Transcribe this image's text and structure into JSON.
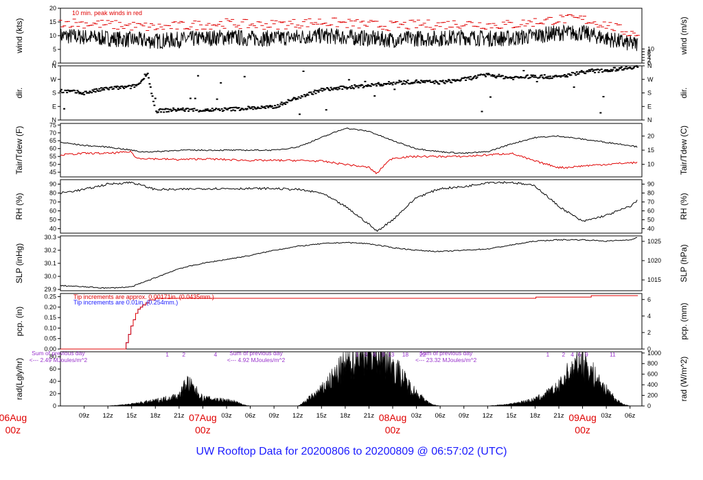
{
  "footer": {
    "title": "UW Rooftop Data for 20200806  to  20200809 @ 06:57:02  (UTC)"
  },
  "colors": {
    "black": "#000000",
    "red": "#e00000",
    "blue": "#1a1aff",
    "purple": "#9933cc",
    "date_red": "#e00000",
    "series_blue": "#2222cc"
  },
  "chart_data": {
    "type": "line",
    "time_axis": {
      "start": "2020-08-06 06:00Z",
      "end": "2020-08-09 07:00Z",
      "ticks_hours": [
        3,
        6,
        9,
        12,
        15,
        18,
        21,
        24,
        27,
        30,
        33,
        36,
        39,
        42,
        45,
        48,
        51,
        54,
        57,
        60,
        63,
        66,
        69,
        72
      ],
      "tick_labels": [
        "09z",
        "12z",
        "15z",
        "18z",
        "21z",
        "00z",
        "03z",
        "06z",
        "09z",
        "12z",
        "15z",
        "18z",
        "21z",
        "00z",
        "03z",
        "06z",
        "09z",
        "12z",
        "15z",
        "18z",
        "21z",
        "00z",
        "03z",
        "06z"
      ],
      "hide_tick_label_hours": [
        18,
        42,
        66
      ],
      "date_labels": [
        {
          "hour": -6,
          "date": "06Aug",
          "zz": "00z"
        },
        {
          "hour": 18,
          "date": "07Aug",
          "zz": "00z"
        },
        {
          "hour": 42,
          "date": "08Aug",
          "zz": "00z"
        },
        {
          "hour": 66,
          "date": "09Aug",
          "zz": "00z"
        }
      ]
    },
    "panels": [
      {
        "key": "wind",
        "ylabel": "wind (kts)",
        "ylabel_right": "wind (m/s)",
        "ylim": [
          0,
          20
        ],
        "yticks": [
          0,
          5,
          10,
          15,
          20
        ],
        "right_ticks": [
          0,
          2,
          4,
          6,
          8,
          10
        ],
        "right_factor": 1.944,
        "annotation": "10 min. peak winds in red",
        "series": [
          {
            "color": "#000000",
            "style": "line",
            "x": [
              0,
              3,
              6,
              9,
              12,
              15,
              18,
              21,
              24,
              27,
              30,
              33,
              36,
              39,
              42,
              45,
              48,
              51,
              54,
              57,
              60,
              63,
              66,
              69,
              72,
              73
            ],
            "y": [
              10,
              9.5,
              9,
              8.5,
              8,
              8.5,
              9,
              9.5,
              9,
              9,
              9.5,
              10,
              9.5,
              9,
              8.5,
              9,
              9,
              9.5,
              9,
              9,
              10,
              11,
              11,
              9,
              7,
              7
            ],
            "noise": 3,
            "step": 0.06
          },
          {
            "color": "#e00000",
            "style": "dash",
            "x": [
              0,
              3,
              6,
              9,
              12,
              15,
              18,
              21,
              24,
              27,
              30,
              33,
              36,
              39,
              42,
              45,
              48,
              51,
              54,
              57,
              60,
              63,
              66,
              69,
              72,
              73
            ],
            "y": [
              15,
              14.5,
              14,
              13.5,
              13,
              13.5,
              14,
              14.5,
              14,
              14,
              14.5,
              15,
              14.5,
              14,
              13.5,
              14,
              14,
              14.5,
              14,
              14,
              15,
              16,
              16,
              14,
              11,
              11
            ],
            "noise": 1.8,
            "step": 0.25
          }
        ]
      },
      {
        "key": "dir",
        "ylabel": "dir.",
        "ylabel_right": "dir.",
        "ylim": [
          0,
          360
        ],
        "ytick_values": [
          0,
          90,
          180,
          270,
          360
        ],
        "ytick_labels": [
          "N",
          "E",
          "S",
          "W",
          "N"
        ],
        "series": [
          {
            "color": "#000000",
            "style": "scatter",
            "x": [
              0,
              3,
              6,
              9,
              10,
              11,
              12,
              15,
              18,
              21,
              24,
              27,
              30,
              33,
              36,
              39,
              42,
              45,
              48,
              51,
              54,
              57,
              60,
              63,
              66,
              69,
              72,
              73
            ],
            "y": [
              195,
              180,
              210,
              220,
              240,
              320,
              60,
              70,
              65,
              70,
              80,
              85,
              150,
              200,
              215,
              230,
              245,
              255,
              250,
              270,
              300,
              280,
              290,
              285,
              320,
              330,
              350,
              355
            ],
            "noise": 12,
            "step": 0.12
          }
        ]
      },
      {
        "key": "temp",
        "ylabel": "Tair/Tdew (F)",
        "ylabel_right": "Tair/Tdew (C)",
        "ylim": [
          42,
          76
        ],
        "yticks": [
          45,
          50,
          55,
          60,
          65,
          70,
          75
        ],
        "right_ticks": [
          10,
          15,
          20
        ],
        "right_to_left": "F",
        "series": [
          {
            "color": "#000000",
            "style": "line",
            "x": [
              0,
              3,
              6,
              9,
              10,
              12,
              15,
              18,
              21,
              24,
              27,
              30,
              33,
              36,
              39,
              42,
              45,
              48,
              51,
              54,
              57,
              60,
              63,
              66,
              69,
              72,
              73
            ],
            "y": [
              64,
              62,
              61,
              59,
              58,
              58,
              59,
              59,
              59,
              59,
              59,
              61,
              67,
              73,
              71,
              65,
              60,
              58,
              57,
              58,
              63,
              67,
              68,
              66,
              64,
              62,
              61
            ],
            "noise": 0.4,
            "step": 0.15
          },
          {
            "color": "#e00000",
            "style": "line",
            "x": [
              0,
              3,
              6,
              9,
              9.5,
              12,
              15,
              18,
              21,
              24,
              27,
              30,
              33,
              36,
              39,
              40,
              41,
              42,
              45,
              48,
              51,
              54,
              57,
              60,
              63,
              64,
              66,
              69,
              72,
              73
            ],
            "y": [
              56,
              57,
              57,
              58,
              54,
              53.5,
              53,
              53.5,
              53,
              52.5,
              52.5,
              52.5,
              52,
              50,
              48,
              44,
              50,
              54,
              55,
              55,
              55,
              56,
              57,
              52,
              48,
              48,
              49,
              50,
              51,
              51
            ],
            "noise": 0.6,
            "step": 0.15
          }
        ]
      },
      {
        "key": "rh",
        "ylabel": "RH (%)",
        "ylabel_right": "RH (%)",
        "ylim": [
          35,
          95
        ],
        "yticks": [
          40,
          50,
          60,
          70,
          80,
          90
        ],
        "right_ticks": [
          40,
          50,
          60,
          70,
          80,
          90
        ],
        "series": [
          {
            "color": "#000000",
            "style": "line",
            "x": [
              0,
              3,
              6,
              9,
              12,
              15,
              18,
              21,
              24,
              27,
              30,
              33,
              36,
              39,
              40,
              42,
              45,
              48,
              51,
              54,
              57,
              60,
              63,
              66,
              69,
              72,
              73
            ],
            "y": [
              80,
              84,
              90,
              92,
              84,
              84,
              85,
              85,
              85,
              85,
              84,
              80,
              65,
              45,
              37,
              50,
              75,
              85,
              87,
              92,
              92,
              88,
              65,
              48,
              55,
              65,
              72
            ],
            "noise": 1.2,
            "step": 0.15
          }
        ]
      },
      {
        "key": "slp",
        "ylabel": "SLP (inHg)",
        "ylabel_right": "SLP (hPa)",
        "ylim": [
          29.89,
          30.31
        ],
        "yticks": [
          29.9,
          30.0,
          30.1,
          30.2,
          30.3
        ],
        "right_ticks": [
          1015,
          1020,
          1025
        ],
        "right_factor": 33.8639,
        "series": [
          {
            "color": "#000000",
            "style": "line",
            "x": [
              0,
              3,
              6,
              9,
              12,
              15,
              18,
              21,
              24,
              27,
              30,
              33,
              36,
              39,
              42,
              45,
              48,
              51,
              54,
              57,
              60,
              63,
              66,
              69,
              72,
              73
            ],
            "y": [
              29.93,
              29.92,
              29.91,
              29.92,
              29.99,
              30.06,
              30.1,
              30.13,
              30.16,
              30.2,
              30.23,
              30.25,
              30.26,
              30.25,
              30.22,
              30.2,
              30.19,
              30.2,
              30.21,
              30.24,
              30.27,
              30.28,
              30.28,
              30.27,
              30.28,
              30.3
            ],
            "noise": 0.004,
            "step": 0.15
          }
        ]
      },
      {
        "key": "pcp",
        "ylabel": "pcp. (in)",
        "ylabel_right": "pcp. (mm)",
        "ylim": [
          0,
          0.265
        ],
        "yticks": [
          0.0,
          0.05,
          0.1,
          0.15,
          0.2,
          0.25
        ],
        "right_ticks": [
          0,
          2,
          4,
          6
        ],
        "right_factor": 25.4,
        "annotation_red": "Tip increments are approx. 0.00171in. (0.0435mm.)",
        "annotation_blue": "Tip increments are 0.01in. (0.254mm.)",
        "series": [
          {
            "color": "#2222cc",
            "style": "step",
            "x": [
              0,
              8.2,
              8.3,
              8.6,
              8.9,
              9.2,
              9.5,
              9.8,
              10.1,
              10.4,
              10.8,
              11.2
            ],
            "y": [
              0,
              0,
              0.03,
              0.07,
              0.11,
              0.14,
              0.17,
              0.19,
              0.2,
              0.21,
              0.22,
              0.235
            ]
          },
          {
            "color": "#e00000",
            "style": "step",
            "x": [
              0,
              8.2,
              8.3,
              8.6,
              8.9,
              9.2,
              9.5,
              9.8,
              10.1,
              10.4,
              10.8,
              11.2,
              12,
              60,
              60.1,
              67,
              67.1,
              73
            ],
            "y": [
              0,
              0,
              0.03,
              0.07,
              0.11,
              0.14,
              0.17,
              0.19,
              0.2,
              0.21,
              0.22,
              0.235,
              0.242,
              0.242,
              0.248,
              0.248,
              0.255,
              0.255
            ]
          }
        ]
      },
      {
        "key": "rad",
        "ylabel": "rad(Lgly/hr)",
        "ylabel_right": "rad (W/m^2)",
        "ylim": [
          0,
          88
        ],
        "yticks": [
          0,
          20,
          40,
          60,
          80
        ],
        "right_ticks": [
          0,
          200,
          400,
          600,
          800,
          1000
        ],
        "right_factor": 11.63,
        "daily_sums": [
          {
            "hour": -4,
            "line1": "Sum of previous day",
            "line2": "<--- 2.49 MJoules/m^2"
          },
          {
            "hour": 21,
            "line1": "Sum of previous day",
            "line2": "<--- 4.92 MJoules/m^2"
          },
          {
            "hour": 45,
            "line1": "Sum of previous day",
            "line2": "<--- 23.32 MJoules/m^2"
          }
        ],
        "top_marks": [
          {
            "hour": 13.5,
            "label": "1"
          },
          {
            "hour": 15.6,
            "label": "2"
          },
          {
            "hour": 19.6,
            "label": "4"
          },
          {
            "hour": 37.5,
            "label": "1"
          },
          {
            "hour": 38.6,
            "label": "3"
          },
          {
            "hour": 39.7,
            "label": "6"
          },
          {
            "hour": 40.8,
            "label": "9"
          },
          {
            "hour": 41.8,
            "label": "13"
          },
          {
            "hour": 43.6,
            "label": "18"
          },
          {
            "hour": 45.8,
            "label": "22"
          },
          {
            "hour": 61.6,
            "label": "1"
          },
          {
            "hour": 63.6,
            "label": "2"
          },
          {
            "hour": 64.7,
            "label": "4"
          },
          {
            "hour": 65.6,
            "label": "6"
          },
          {
            "hour": 66.5,
            "label": "9"
          },
          {
            "hour": 69.8,
            "label": "11"
          }
        ],
        "series": [
          {
            "color": "#000000",
            "style": "area",
            "x": [
              0,
              5,
              6,
              9,
              12,
              15,
              16,
              18,
              20,
              22,
              23,
              24,
              29,
              30,
              30.5,
              33,
              36,
              37,
              39,
              40,
              42,
              44,
              46,
              47,
              48,
              53,
              54,
              57,
              60,
              62,
              63,
              64,
              66,
              68,
              70,
              71,
              72,
              73
            ],
            "y": [
              0,
              0,
              0,
              3,
              8,
              16,
              38,
              12,
              10,
              7,
              2,
              0,
              0,
              0,
              3,
              25,
              65,
              75,
              92,
              88,
              65,
              32,
              9,
              2,
              0,
              0,
              0,
              3,
              10,
              22,
              30,
              48,
              72,
              38,
              12,
              3,
              0,
              0
            ],
            "noise": 0.45,
            "step": 0.05
          }
        ]
      }
    ]
  }
}
